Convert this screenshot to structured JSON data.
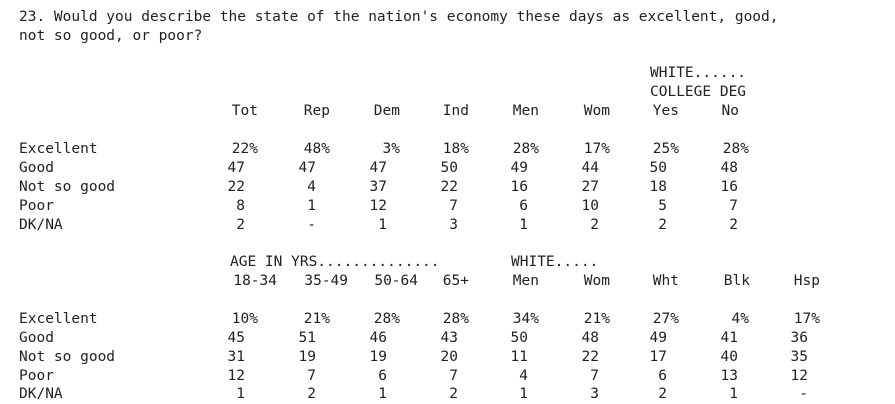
{
  "question": {
    "line1": "23. Would you describe the state of the nation's economy these days as excellent, good,",
    "line2": "not so good, or poor?"
  },
  "table1": {
    "group_header": {
      "line1": "WHITE......",
      "line2": "COLLEGE DEG"
    },
    "columns": [
      "Tot",
      "Rep",
      "Dem",
      "Ind",
      "Men",
      "Wom",
      "Yes",
      "No"
    ],
    "rows": [
      {
        "label": "Excellent",
        "values": [
          "22%",
          "48%",
          "3%",
          "18%",
          "28%",
          "17%",
          "25%",
          "28%"
        ]
      },
      {
        "label": "Good",
        "values": [
          "47",
          "47",
          "47",
          "50",
          "49",
          "44",
          "50",
          "48"
        ]
      },
      {
        "label": "Not so good",
        "values": [
          "22",
          "4",
          "37",
          "22",
          "16",
          "27",
          "18",
          "16"
        ]
      },
      {
        "label": "Poor",
        "values": [
          "8",
          "1",
          "12",
          "7",
          "6",
          "10",
          "5",
          "7"
        ]
      },
      {
        "label": "DK/NA",
        "values": [
          "2",
          "-",
          "1",
          "3",
          "1",
          "2",
          "2",
          "2"
        ]
      }
    ]
  },
  "table2": {
    "age_header": "AGE IN YRS..............",
    "white_header": "WHITE.....",
    "columns": [
      "18-34",
      "35-49",
      "50-64",
      "65+",
      "Men",
      "Wom",
      "Wht",
      "Blk",
      "Hsp"
    ],
    "rows": [
      {
        "label": "Excellent",
        "values": [
          "10%",
          "21%",
          "28%",
          "28%",
          "34%",
          "21%",
          "27%",
          "4%",
          "17%"
        ]
      },
      {
        "label": "Good",
        "values": [
          "45",
          "51",
          "46",
          "43",
          "50",
          "48",
          "49",
          "41",
          "36"
        ]
      },
      {
        "label": "Not so good",
        "values": [
          "31",
          "19",
          "19",
          "20",
          "11",
          "22",
          "17",
          "40",
          "35"
        ]
      },
      {
        "label": "Poor",
        "values": [
          "12",
          "7",
          "6",
          "7",
          "4",
          "7",
          "6",
          "13",
          "12"
        ]
      },
      {
        "label": "DK/NA",
        "values": [
          "1",
          "2",
          "1",
          "2",
          "1",
          "3",
          "2",
          "1",
          "-"
        ]
      }
    ]
  }
}
